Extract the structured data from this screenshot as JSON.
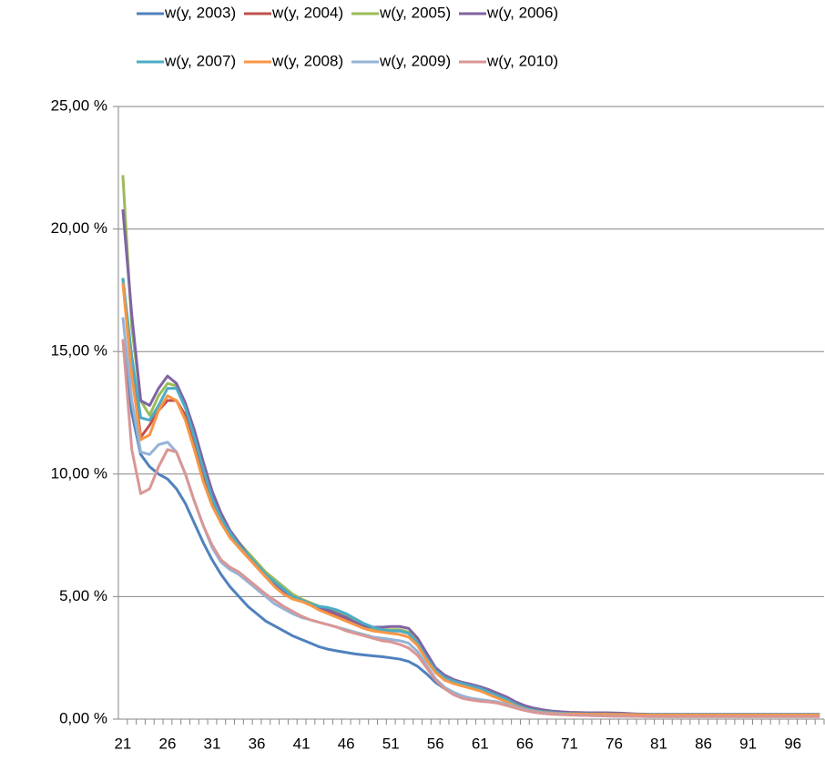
{
  "chart_data": {
    "type": "line",
    "categories": [
      21,
      null,
      null,
      null,
      null,
      26,
      null,
      null,
      null,
      null,
      31,
      null,
      null,
      null,
      null,
      36,
      null,
      null,
      null,
      null,
      41,
      null,
      null,
      null,
      null,
      46,
      null,
      null,
      null,
      null,
      51,
      null,
      null,
      null,
      null,
      56,
      null,
      null,
      null,
      null,
      61,
      null,
      null,
      null,
      null,
      66,
      null,
      null,
      null,
      null,
      71,
      null,
      null,
      null,
      null,
      76,
      null,
      null,
      null,
      null,
      81,
      null,
      null,
      null,
      null,
      86,
      null,
      null,
      null,
      null,
      91,
      null,
      null,
      null,
      null,
      96,
      null,
      null,
      null
    ],
    "ylim": [
      0,
      25
    ],
    "yticks": [
      {
        "value": 0,
        "label": "0,00 %"
      },
      {
        "value": 5,
        "label": "5,00 %"
      },
      {
        "value": 10,
        "label": "10,00 %"
      },
      {
        "value": 15,
        "label": "15,00 %"
      },
      {
        "value": 20,
        "label": "20,00 %"
      },
      {
        "value": 25,
        "label": "25,00 %"
      }
    ],
    "grid": true,
    "legend": "top",
    "series": [
      {
        "name": "w(y, 2003)",
        "color": "#4f81bd",
        "values": [
          15.5,
          12.5,
          10.8,
          10.3,
          10.0,
          9.8,
          9.4,
          8.8,
          8.0,
          7.2,
          6.5,
          5.9,
          5.4,
          5.0,
          4.6,
          4.3,
          4.0,
          3.8,
          3.6,
          3.4,
          3.25,
          3.1,
          2.95,
          2.85,
          2.78,
          2.72,
          2.66,
          2.62,
          2.58,
          2.55,
          2.5,
          2.45,
          2.35,
          2.15,
          1.85,
          1.5,
          1.25,
          1.05,
          0.9,
          0.82,
          0.76,
          0.72,
          0.66,
          0.58,
          0.48,
          0.4,
          0.34,
          0.3,
          0.27,
          0.25,
          0.24,
          0.23,
          0.23,
          0.22,
          0.22,
          0.22,
          0.21,
          0.21,
          0.21,
          0.2,
          0.2,
          0.2,
          0.2,
          0.2,
          0.2,
          0.2,
          0.2,
          0.2,
          0.2,
          0.2,
          0.2,
          0.2,
          0.2,
          0.2,
          0.2,
          0.2,
          0.2,
          0.2,
          0.2
        ]
      },
      {
        "name": "w(y, 2004)",
        "color": "#c0504d",
        "values": [
          18.0,
          14.5,
          11.5,
          12.0,
          12.6,
          13.0,
          13.0,
          12.4,
          11.2,
          10.0,
          8.9,
          8.0,
          7.5,
          7.0,
          6.6,
          6.2,
          5.8,
          5.5,
          5.2,
          5.0,
          4.85,
          4.7,
          4.55,
          4.4,
          4.25,
          4.1,
          3.9,
          3.75,
          3.65,
          3.6,
          3.6,
          3.6,
          3.5,
          3.1,
          2.5,
          2.0,
          1.7,
          1.55,
          1.45,
          1.35,
          1.25,
          1.1,
          0.95,
          0.8,
          0.62,
          0.48,
          0.38,
          0.32,
          0.28,
          0.25,
          0.23,
          0.22,
          0.22,
          0.21,
          0.21,
          0.2,
          0.2,
          0.19,
          0.19,
          0.18,
          0.18,
          0.18,
          0.18,
          0.18,
          0.18,
          0.18,
          0.18,
          0.18,
          0.18,
          0.18,
          0.18,
          0.18,
          0.18,
          0.18,
          0.18,
          0.18,
          0.18,
          0.18,
          0.18
        ]
      },
      {
        "name": "w(y, 2005)",
        "color": "#9bbb59",
        "values": [
          22.2,
          16.0,
          13.0,
          12.4,
          13.2,
          13.7,
          13.6,
          12.8,
          11.6,
          10.3,
          9.1,
          8.3,
          7.7,
          7.2,
          6.8,
          6.4,
          6.0,
          5.7,
          5.4,
          5.1,
          4.9,
          4.75,
          4.6,
          4.5,
          4.35,
          4.2,
          4.0,
          3.8,
          3.7,
          3.65,
          3.65,
          3.65,
          3.55,
          3.15,
          2.55,
          2.05,
          1.75,
          1.6,
          1.5,
          1.4,
          1.3,
          1.15,
          1.0,
          0.85,
          0.65,
          0.5,
          0.4,
          0.33,
          0.29,
          0.26,
          0.23,
          0.22,
          0.22,
          0.21,
          0.21,
          0.2,
          0.2,
          0.19,
          0.19,
          0.18,
          0.18,
          0.18,
          0.18,
          0.18,
          0.18,
          0.18,
          0.18,
          0.18,
          0.18,
          0.18,
          0.18,
          0.18,
          0.18,
          0.18,
          0.18,
          0.18,
          0.18,
          0.18,
          0.18
        ]
      },
      {
        "name": "w(y, 2006)",
        "color": "#8064a2",
        "values": [
          20.8,
          16.5,
          13.0,
          12.8,
          13.5,
          14.0,
          13.7,
          12.9,
          11.8,
          10.5,
          9.3,
          8.4,
          7.7,
          7.2,
          6.7,
          6.3,
          5.9,
          5.5,
          5.2,
          5.0,
          4.85,
          4.7,
          4.55,
          4.45,
          4.3,
          4.15,
          3.95,
          3.8,
          3.75,
          3.75,
          3.78,
          3.78,
          3.7,
          3.3,
          2.7,
          2.1,
          1.8,
          1.62,
          1.5,
          1.42,
          1.32,
          1.2,
          1.05,
          0.9,
          0.7,
          0.55,
          0.45,
          0.38,
          0.33,
          0.3,
          0.28,
          0.27,
          0.26,
          0.26,
          0.26,
          0.25,
          0.24,
          0.22,
          0.2,
          0.18,
          0.18,
          0.18,
          0.18,
          0.18,
          0.18,
          0.18,
          0.18,
          0.18,
          0.18,
          0.18,
          0.18,
          0.18,
          0.18,
          0.18,
          0.18,
          0.18,
          0.18,
          0.18,
          0.18
        ]
      },
      {
        "name": "w(y, 2007)",
        "color": "#4bacc6",
        "values": [
          18.0,
          14.8,
          12.3,
          12.2,
          12.8,
          13.5,
          13.5,
          12.7,
          11.5,
          10.2,
          9.0,
          8.2,
          7.6,
          7.1,
          6.7,
          6.3,
          5.9,
          5.6,
          5.3,
          5.0,
          4.85,
          4.7,
          4.6,
          4.55,
          4.45,
          4.3,
          4.1,
          3.9,
          3.75,
          3.65,
          3.6,
          3.6,
          3.5,
          3.1,
          2.5,
          2.0,
          1.7,
          1.55,
          1.45,
          1.35,
          1.25,
          1.1,
          0.95,
          0.8,
          0.6,
          0.45,
          0.36,
          0.3,
          0.27,
          0.24,
          0.23,
          0.22,
          0.22,
          0.21,
          0.21,
          0.2,
          0.2,
          0.19,
          0.19,
          0.18,
          0.18,
          0.18,
          0.18,
          0.18,
          0.18,
          0.18,
          0.18,
          0.18,
          0.18,
          0.18,
          0.18,
          0.18,
          0.18,
          0.18,
          0.18,
          0.18,
          0.18,
          0.18,
          0.18
        ]
      },
      {
        "name": "w(y, 2008)",
        "color": "#f79646",
        "values": [
          17.8,
          14.0,
          11.4,
          11.6,
          12.6,
          13.2,
          13.0,
          12.2,
          11.0,
          9.7,
          8.7,
          8.0,
          7.4,
          7.0,
          6.6,
          6.2,
          5.8,
          5.4,
          5.1,
          4.9,
          4.8,
          4.65,
          4.45,
          4.3,
          4.15,
          4.0,
          3.85,
          3.7,
          3.6,
          3.55,
          3.5,
          3.45,
          3.35,
          3.0,
          2.4,
          1.9,
          1.6,
          1.45,
          1.35,
          1.25,
          1.15,
          1.0,
          0.85,
          0.7,
          0.52,
          0.4,
          0.32,
          0.27,
          0.24,
          0.22,
          0.21,
          0.21,
          0.2,
          0.2,
          0.2,
          0.19,
          0.19,
          0.18,
          0.18,
          0.17,
          0.17,
          0.17,
          0.17,
          0.17,
          0.17,
          0.17,
          0.17,
          0.17,
          0.17,
          0.17,
          0.17,
          0.17,
          0.17,
          0.17,
          0.17,
          0.17,
          0.17,
          0.17,
          0.17
        ]
      },
      {
        "name": "w(y, 2009)",
        "color": "#95b3d7",
        "values": [
          16.4,
          13.0,
          10.9,
          10.8,
          11.2,
          11.3,
          10.9,
          10.0,
          8.9,
          7.9,
          7.0,
          6.4,
          6.1,
          5.9,
          5.6,
          5.3,
          5.0,
          4.7,
          4.5,
          4.3,
          4.15,
          4.05,
          3.95,
          3.85,
          3.75,
          3.65,
          3.55,
          3.45,
          3.35,
          3.3,
          3.25,
          3.2,
          3.1,
          2.75,
          2.2,
          1.65,
          1.3,
          1.1,
          0.95,
          0.85,
          0.8,
          0.75,
          0.7,
          0.6,
          0.48,
          0.38,
          0.3,
          0.25,
          0.22,
          0.2,
          0.17,
          0.16,
          0.15,
          0.14,
          0.13,
          0.12,
          0.12,
          0.11,
          0.11,
          0.1,
          0.1,
          0.1,
          0.1,
          0.1,
          0.1,
          0.1,
          0.1,
          0.1,
          0.1,
          0.1,
          0.1,
          0.1,
          0.1,
          0.1,
          0.1,
          0.1,
          0.1,
          0.1,
          0.1
        ]
      },
      {
        "name": "w(y, 2010)",
        "color": "#d99694",
        "values": [
          15.5,
          11.0,
          9.2,
          9.4,
          10.3,
          11.0,
          10.9,
          10.0,
          8.9,
          7.9,
          7.1,
          6.5,
          6.2,
          6.0,
          5.7,
          5.4,
          5.1,
          4.85,
          4.6,
          4.4,
          4.2,
          4.05,
          3.95,
          3.85,
          3.75,
          3.6,
          3.5,
          3.4,
          3.3,
          3.2,
          3.15,
          3.05,
          2.9,
          2.6,
          2.1,
          1.6,
          1.25,
          1.0,
          0.85,
          0.78,
          0.73,
          0.7,
          0.65,
          0.55,
          0.45,
          0.35,
          0.28,
          0.23,
          0.2,
          0.18,
          0.17,
          0.16,
          0.15,
          0.14,
          0.13,
          0.12,
          0.12,
          0.11,
          0.11,
          0.1,
          0.1,
          0.1,
          0.1,
          0.1,
          0.1,
          0.1,
          0.1,
          0.1,
          0.1,
          0.1,
          0.1,
          0.1,
          0.1,
          0.1,
          0.1,
          0.1,
          0.1,
          0.1,
          0.1
        ]
      }
    ]
  }
}
